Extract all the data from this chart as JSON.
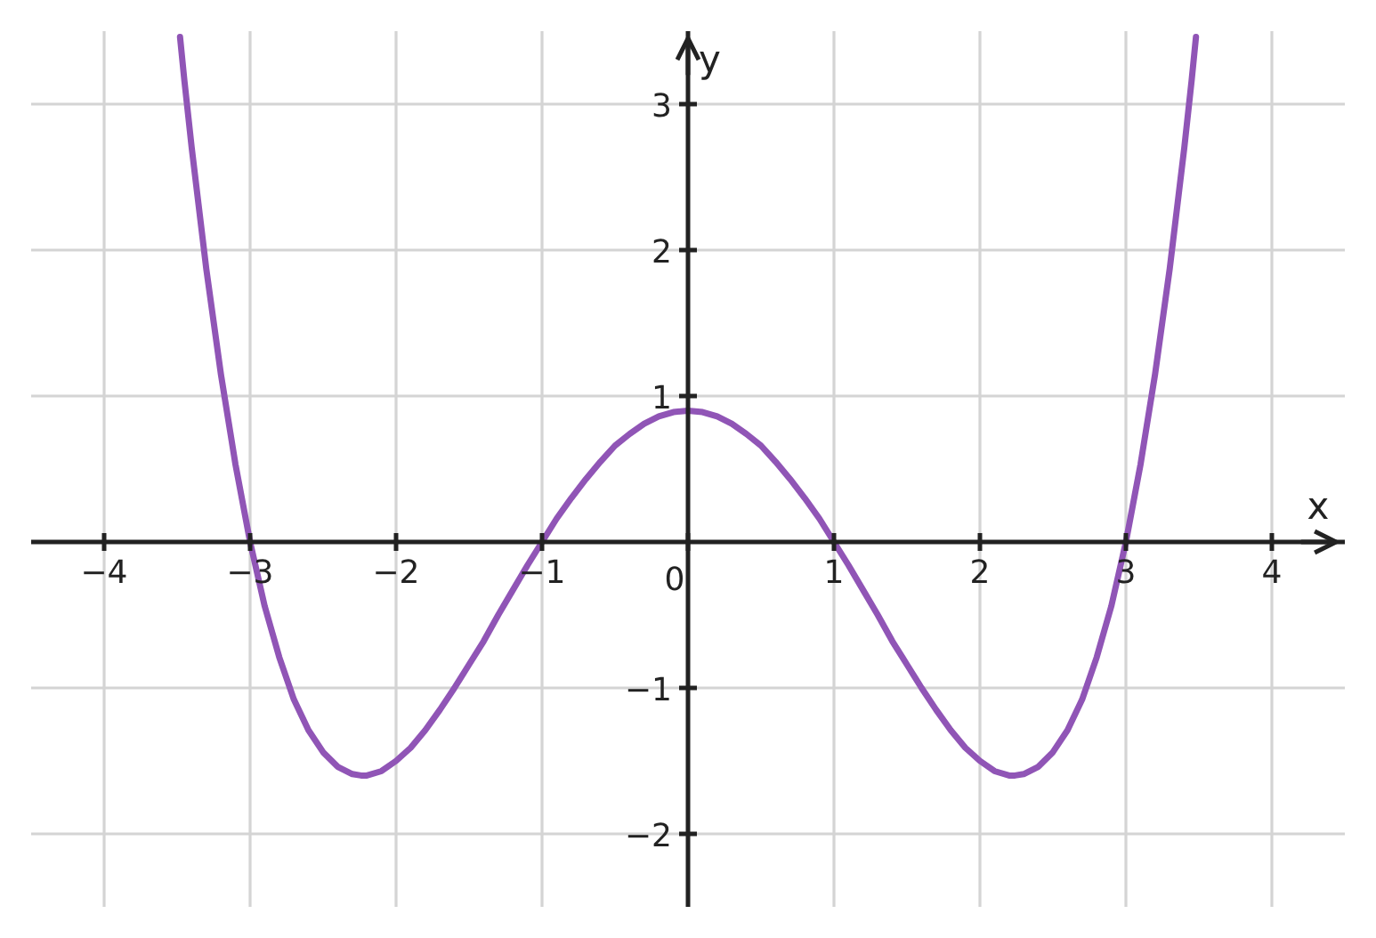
{
  "chart_data": {
    "type": "line",
    "xlabel": "x",
    "ylabel": "y",
    "xlim": [
      -4.5,
      4.5
    ],
    "ylim": [
      -2.5,
      3.5
    ],
    "xticks": [
      {
        "value": -4,
        "label": "−4"
      },
      {
        "value": -3,
        "label": "−3"
      },
      {
        "value": -2,
        "label": "−2"
      },
      {
        "value": -1,
        "label": "−1"
      },
      0,
      1,
      2,
      3,
      4
    ],
    "yticks": [
      {
        "value": -2,
        "label": "−2"
      },
      {
        "value": -1,
        "label": "−1"
      },
      1,
      2,
      3
    ],
    "grid": true,
    "series": [
      {
        "color": "#9055b6",
        "x": [
          -3.48,
          -3.45,
          -3.4,
          -3.3,
          -3.2,
          -3.1,
          -3.0,
          -2.9,
          -2.8,
          -2.7,
          -2.6,
          -2.5,
          -2.4,
          -2.3,
          -2.24,
          -2.2,
          -2.1,
          -2.0,
          -1.9,
          -1.8,
          -1.7,
          -1.6,
          -1.5,
          -1.4,
          -1.3,
          -1.2,
          -1.1,
          -1.0,
          -0.9,
          -0.8,
          -0.7,
          -0.6,
          -0.5,
          -0.4,
          -0.3,
          -0.2,
          -0.1,
          0,
          0.1,
          0.2,
          0.3,
          0.4,
          0.5,
          0.6,
          0.7,
          0.8,
          0.9,
          1.0,
          1.1,
          1.2,
          1.3,
          1.4,
          1.5,
          1.6,
          1.7,
          1.8,
          1.9,
          2.0,
          2.1,
          2.2,
          2.24,
          2.3,
          2.4,
          2.5,
          2.6,
          2.7,
          2.8,
          2.9,
          3.0,
          3.1,
          3.2,
          3.3,
          3.4,
          3.45,
          3.48
        ],
        "values": [
          3.46,
          3.16,
          2.7,
          1.87,
          1.15,
          0.53,
          0.0,
          -0.44,
          -0.79,
          -1.08,
          -1.29,
          -1.44,
          -1.54,
          -1.59,
          -1.6,
          -1.6,
          -1.57,
          -1.5,
          -1.41,
          -1.29,
          -1.15,
          -1.0,
          -0.84,
          -0.68,
          -0.5,
          -0.33,
          -0.16,
          0.0,
          0.16,
          0.3,
          0.43,
          0.55,
          0.66,
          0.74,
          0.81,
          0.86,
          0.89,
          0.9,
          0.89,
          0.86,
          0.81,
          0.74,
          0.66,
          0.55,
          0.43,
          0.3,
          0.16,
          0.0,
          -0.16,
          -0.33,
          -0.5,
          -0.68,
          -0.84,
          -1.0,
          -1.15,
          -1.29,
          -1.41,
          -1.5,
          -1.57,
          -1.6,
          -1.6,
          -1.59,
          -1.54,
          -1.44,
          -1.29,
          -1.08,
          -0.79,
          -0.44,
          0.0,
          0.53,
          1.15,
          1.87,
          2.7,
          3.16,
          3.46
        ]
      }
    ]
  }
}
